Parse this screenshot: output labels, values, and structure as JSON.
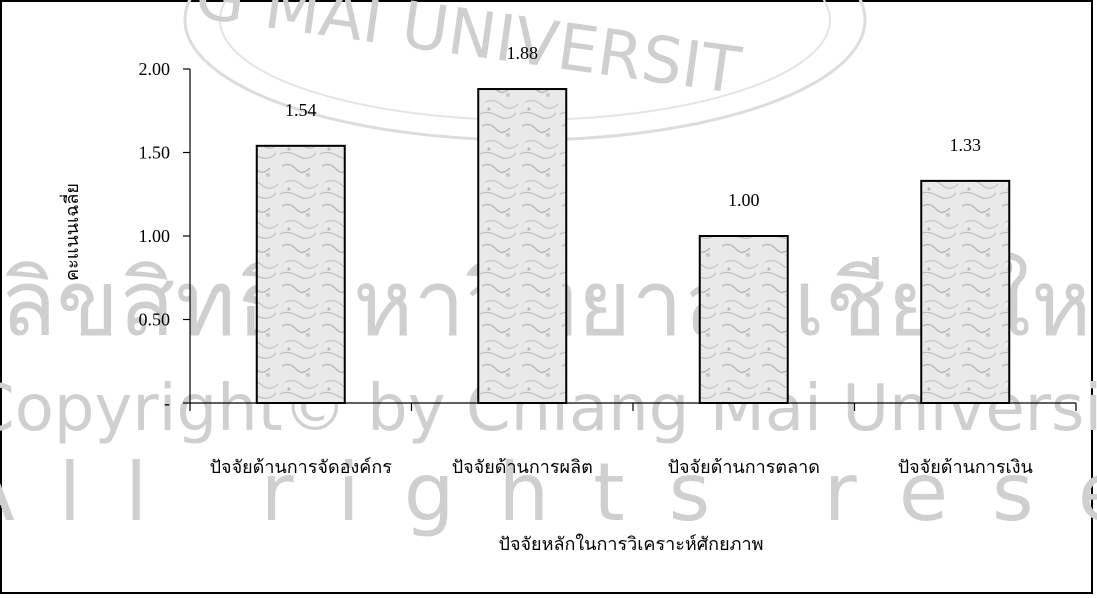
{
  "chart_data": {
    "type": "bar",
    "categories": [
      "ปัจจัยด้านการจัดองค์กร",
      "ปัจจัยด้านการผลิต",
      "ปัจจัยด้านการตลาด",
      "ปัจจัยด้านการเงิน"
    ],
    "values": [
      1.54,
      1.88,
      1.0,
      1.33
    ],
    "data_labels": [
      "1.54",
      "1.88",
      "1.00",
      "1.33"
    ],
    "xlabel": "ปัจจัยหลักในการวิเคราะห์ศักยภาพ",
    "ylabel": "คะแนนเฉลี่ย",
    "ylim": [
      0,
      2
    ],
    "yticks": [
      0,
      0.5,
      1.0,
      1.5,
      2.0
    ],
    "ytick_labels": [
      "-",
      "0.50",
      "1.00",
      "1.50",
      "2.00"
    ],
    "grid": false,
    "legend": "none"
  },
  "watermark": {
    "arc_text": "G MAI UNIVERSIT",
    "thai_text": "ลิขสิทธิ์มหาวิทยาลัยเชียงใหม่",
    "copyright_text": "Copyright© by Chiang Mai University",
    "rights_text": "All rights reserved"
  }
}
